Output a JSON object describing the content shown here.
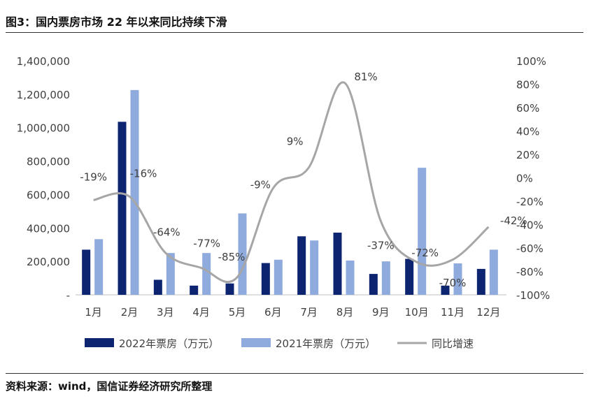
{
  "title": "图3：国内票房市场 22 年以来同比持续下滑",
  "source": "资料来源：wind，国信证券经济研究所整理",
  "colors": {
    "bar2022": "#0d2470",
    "bar2021": "#8faadc",
    "line": "#a6a6a6",
    "axis": "#bfbfbf",
    "text": "#404040"
  },
  "chart_data": {
    "type": "bar",
    "categories": [
      "1月",
      "2月",
      "3月",
      "4月",
      "5月",
      "6月",
      "7月",
      "8月",
      "9月",
      "10月",
      "11月",
      "12月"
    ],
    "series": [
      {
        "name": "2022年票房（万元）",
        "type": "bar",
        "axis": "left",
        "values": [
          270000,
          1035000,
          90000,
          55000,
          68000,
          190000,
          350000,
          372000,
          125000,
          215000,
          55000,
          155000
        ]
      },
      {
        "name": "2021年票房（万元）",
        "type": "bar",
        "axis": "left",
        "values": [
          333000,
          1225000,
          250000,
          250000,
          487000,
          210000,
          325000,
          205000,
          200000,
          760000,
          188000,
          270000
        ]
      },
      {
        "name": "同比增速",
        "type": "line",
        "axis": "right",
        "values": [
          -19,
          -16,
          -64,
          -77,
          -85,
          -9,
          9,
          81,
          -37,
          -72,
          -70,
          -42
        ],
        "labels": [
          "-19%",
          "-16%",
          "-64%",
          "-77%",
          "-85%",
          "-9%",
          "9%",
          "81%",
          "-37%",
          "-72%",
          "-70%",
          "-42%"
        ]
      }
    ],
    "y_left": {
      "min": 0,
      "max": 1400000,
      "ticks": [
        0,
        200000,
        400000,
        600000,
        800000,
        1000000,
        1200000,
        1400000
      ],
      "tick_labels": [
        "-",
        "200,000",
        "400,000",
        "600,000",
        "800,000",
        "1,000,000",
        "1,200,000",
        "1,400,000"
      ]
    },
    "y_right": {
      "min": -100,
      "max": 100,
      "ticks": [
        -100,
        -80,
        -60,
        -40,
        -20,
        0,
        20,
        40,
        60,
        80,
        100
      ],
      "tick_labels": [
        "-100%",
        "-80%",
        "-60%",
        "-40%",
        "-20%",
        "0%",
        "20%",
        "40%",
        "60%",
        "80%",
        "100%"
      ]
    },
    "grid": false,
    "legend_position": "bottom"
  }
}
